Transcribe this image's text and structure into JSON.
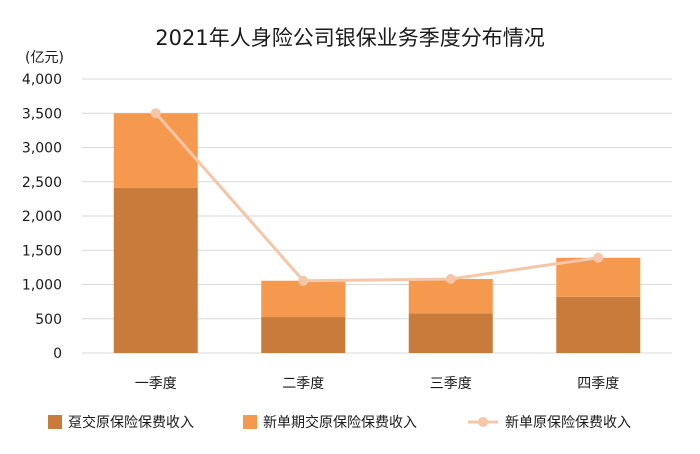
{
  "chart_data": {
    "type": "bar",
    "title": "2021年人身险公司银保业务季度分布情况",
    "unit_label": "(亿元)",
    "categories": [
      "一季度",
      "二季度",
      "三季度",
      "四季度"
    ],
    "stacked": true,
    "ylim": [
      0,
      4000
    ],
    "yticks": [
      0,
      500,
      1000,
      1500,
      2000,
      2500,
      3000,
      3500,
      4000
    ],
    "ytick_labels": [
      "0",
      "500",
      "1,000",
      "1,500",
      "2,000",
      "2,500",
      "3,000",
      "3,500",
      "4,000"
    ],
    "grid": true,
    "legend_position": "bottom",
    "series": [
      {
        "name": "趸交原保险保费收入",
        "kind": "bar",
        "color": "#c97b3b",
        "values": [
          2410,
          525,
          580,
          820
        ]
      },
      {
        "name": "新单期交原保险保费收入",
        "kind": "bar",
        "color": "#f5994e",
        "values": [
          1090,
          530,
          500,
          570
        ]
      },
      {
        "name": "新单原保险保费收入",
        "kind": "line",
        "color": "#f5c6a8",
        "values": [
          3500,
          1055,
          1080,
          1390
        ]
      }
    ]
  }
}
